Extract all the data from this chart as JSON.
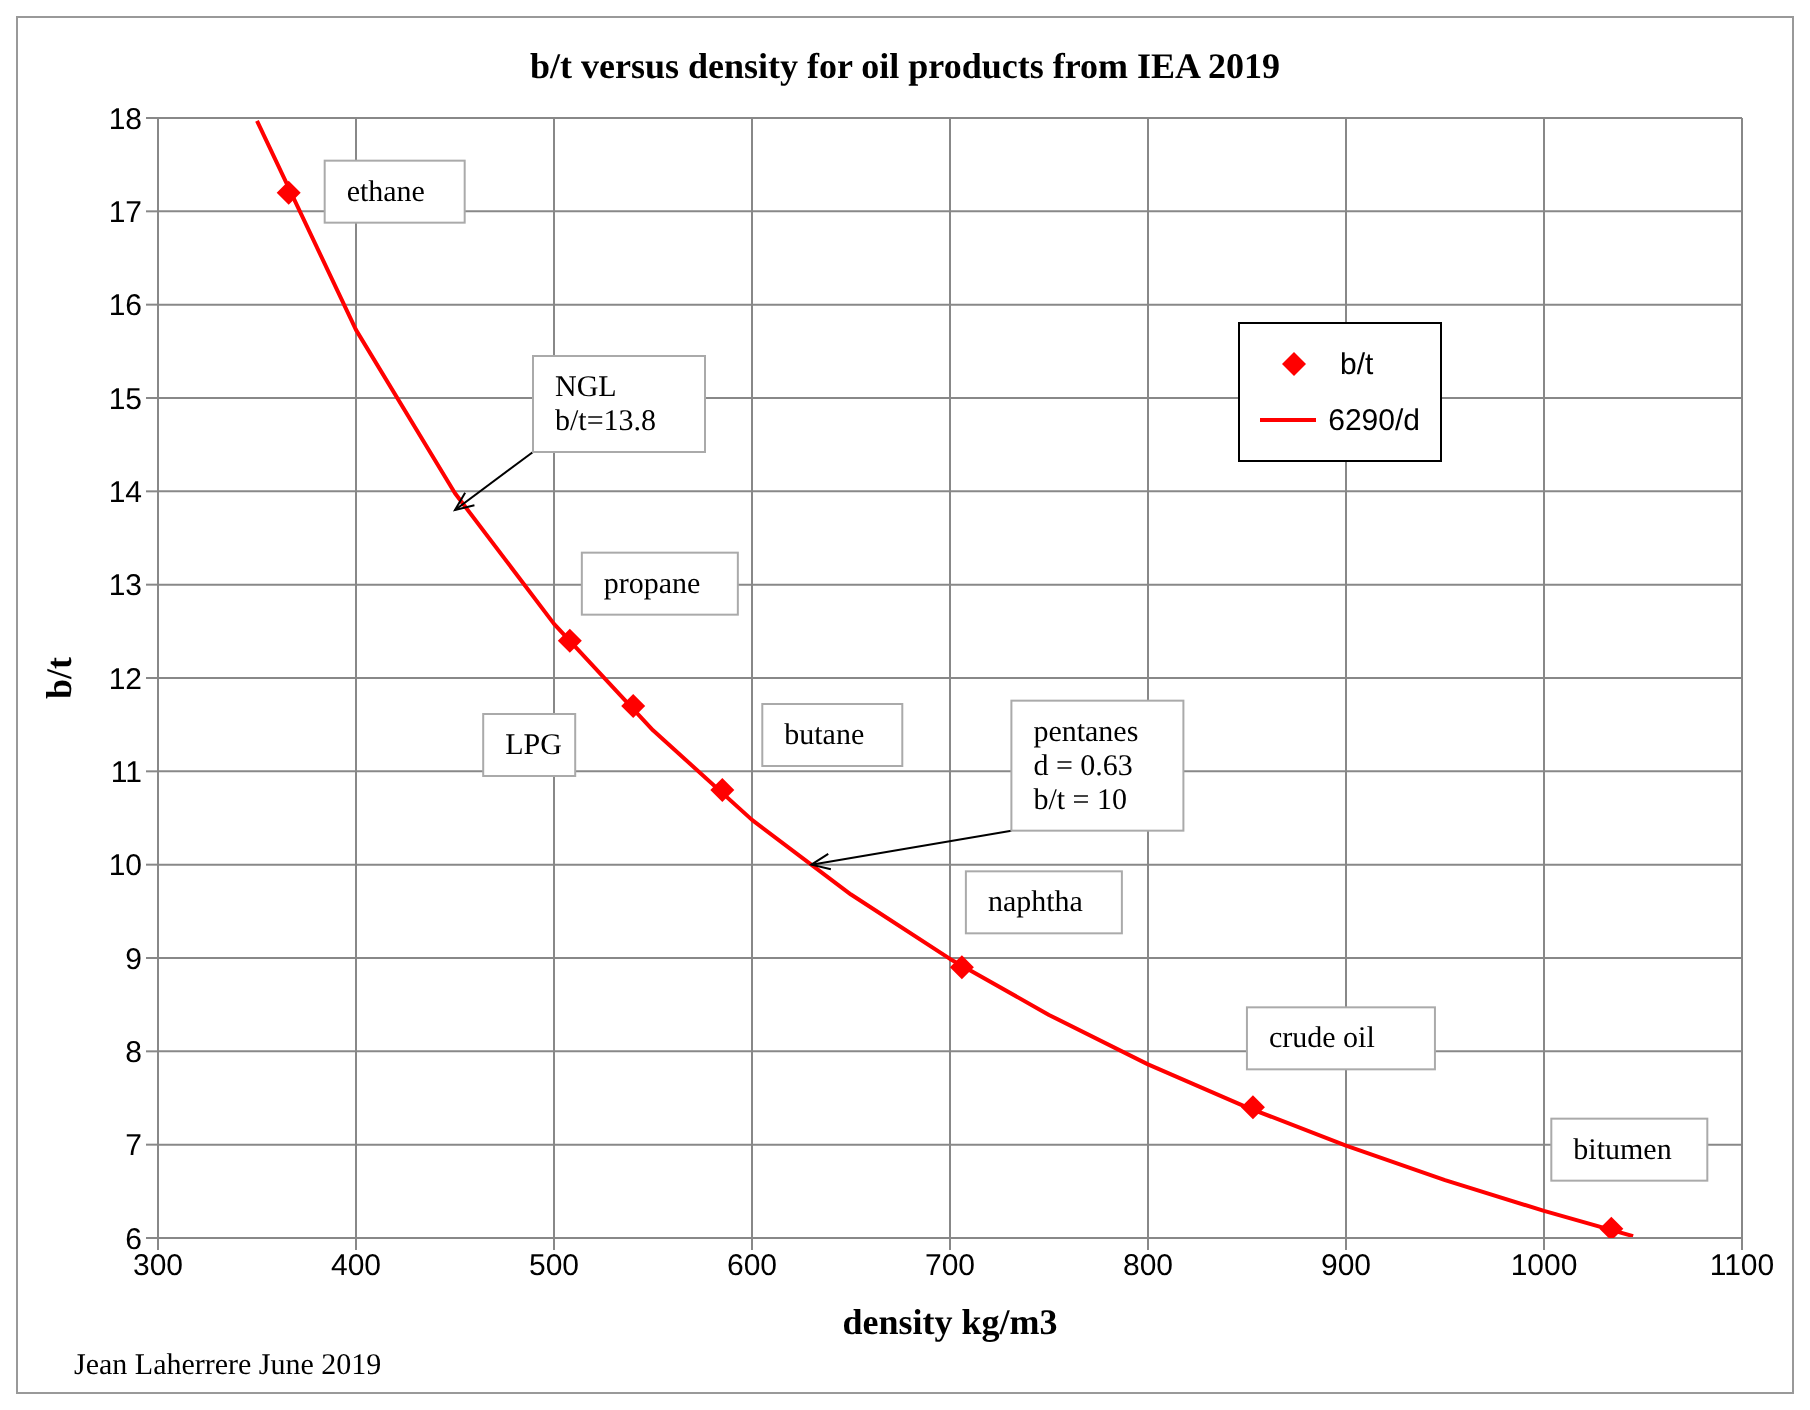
{
  "chart_data": {
    "type": "scatter",
    "title": "b/t versus density for oil products from IEA 2019",
    "xlabel": "density kg/m3",
    "ylabel": "b/t",
    "xlim": [
      300,
      1100
    ],
    "xticks": [
      300,
      400,
      500,
      600,
      700,
      800,
      900,
      1000,
      1100
    ],
    "ylim": [
      6,
      18
    ],
    "yticks": [
      6,
      7,
      8,
      9,
      10,
      11,
      12,
      13,
      14,
      15,
      16,
      17,
      18
    ],
    "grid": true,
    "legend": "top right",
    "series": [
      {
        "name": "b/t",
        "marker": "diamond",
        "color": "#ff0000",
        "x": [
          366,
          508,
          540,
          585,
          706,
          853,
          1034
        ],
        "values": [
          17.2,
          12.4,
          11.7,
          10.8,
          8.9,
          7.4,
          6.1
        ]
      },
      {
        "name": "6290/d",
        "type": "line",
        "marker": "none",
        "color": "#ff0000",
        "x": [
          350,
          400,
          450,
          500,
          550,
          600,
          650,
          700,
          750,
          800,
          850,
          900,
          950,
          1000,
          1045
        ],
        "values": [
          17.97,
          15.73,
          13.98,
          12.58,
          11.44,
          10.48,
          9.68,
          8.99,
          8.39,
          7.86,
          7.4,
          6.99,
          6.62,
          6.29,
          6.02
        ]
      }
    ],
    "annotations": [
      {
        "text": "ethane",
        "x": 366,
        "y": 17.2
      },
      {
        "text": "NGL\nb/t=13.8",
        "x": 450,
        "y": 13.8
      },
      {
        "text": "propane",
        "x": 508,
        "y": 12.4
      },
      {
        "text": "LPG",
        "x": 540,
        "y": 11.7
      },
      {
        "text": "butane",
        "x": 585,
        "y": 10.8
      },
      {
        "text": "pentanes\nd = 0.63\nb/t = 10",
        "x": 630,
        "y": 10
      },
      {
        "text": "naphtha",
        "x": 706,
        "y": 8.9
      },
      {
        "text": "crude oil",
        "x": 853,
        "y": 7.4
      },
      {
        "text": "bitumen",
        "x": 1034,
        "y": 6.1
      },
      "Jean Laherrere June 2019"
    ]
  }
}
